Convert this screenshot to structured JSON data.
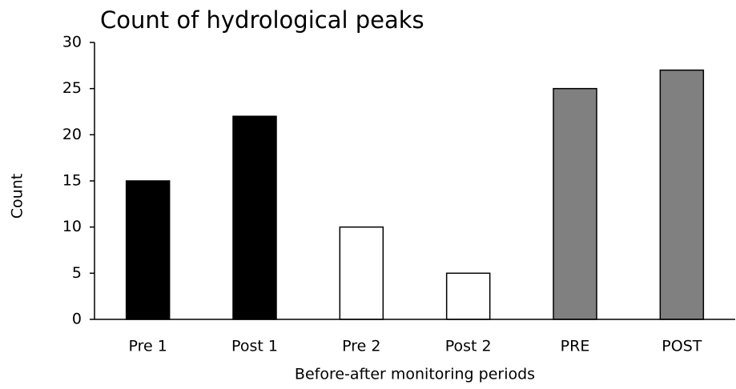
{
  "chart_data": {
    "type": "bar",
    "title": "Count of hydrological peaks",
    "x_label": "Before-after monitoring periods",
    "y_label": "Count",
    "categories": [
      "Pre 1",
      "Post 1",
      "Pre 2",
      "Post 2",
      "PRE",
      "POST"
    ],
    "values": [
      15,
      22,
      10,
      5,
      25,
      27
    ],
    "colors": [
      "#000000",
      "#000000",
      "#ffffff",
      "#ffffff",
      "#808080",
      "#808080"
    ],
    "ylim": [
      0,
      30
    ],
    "yticks": [
      0,
      5,
      10,
      15,
      20,
      25,
      30
    ],
    "grid": false
  }
}
